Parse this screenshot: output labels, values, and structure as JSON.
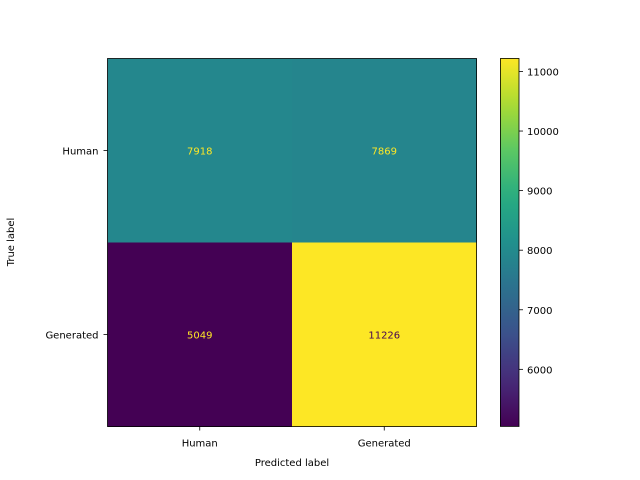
{
  "chart_data": {
    "type": "heatmap",
    "title": "",
    "xlabel": "Predicted label",
    "ylabel": "True label",
    "x_categories": [
      "Human",
      "Generated"
    ],
    "y_categories": [
      "Human",
      "Generated"
    ],
    "values": [
      [
        7918,
        7869
      ],
      [
        5049,
        11226
      ]
    ],
    "colormap": "viridis",
    "colorbar": {
      "range": [
        5049,
        11226
      ],
      "ticks": [
        6000,
        7000,
        8000,
        9000,
        10000,
        11000
      ]
    },
    "colors": {
      "low_text": "#fde725",
      "high_text": "#440154"
    }
  }
}
